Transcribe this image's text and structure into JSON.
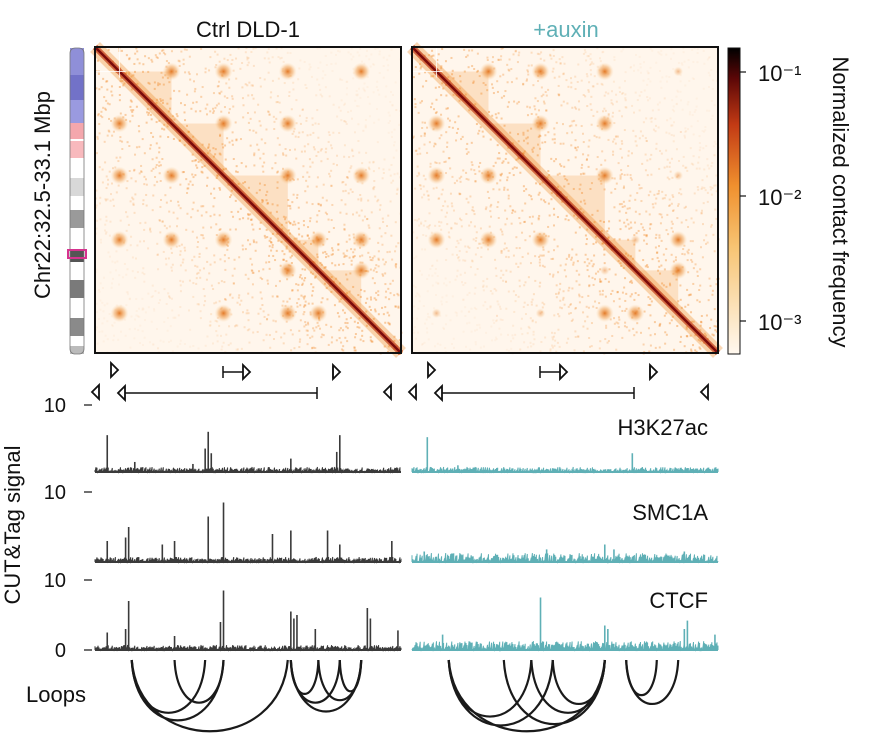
{
  "colors": {
    "ctrl_track": "#3a3a3a",
    "auxin_track": "#5fb0b6",
    "auxin_title": "#5fb0b6",
    "loop": "#1a1a1a",
    "map_low": "#fff6ec",
    "map_mid": "#f29a3c",
    "map_high": "#7a0a0a",
    "map_max": "#000000",
    "ideogram_highlight": "#d6338f"
  },
  "chart_data": {
    "type": "heatmap",
    "panels": [
      {
        "title": "Ctrl DLD-1",
        "track_color_key": "ctrl_track"
      },
      {
        "title": "+auxin",
        "track_color_key": "auxin_track"
      }
    ],
    "ylabel": "Chr22:32.5-33.1 Mbp",
    "colorbar": {
      "label": "Normalized contact frequency",
      "scale": "log",
      "ticks": [
        "10⁻¹",
        "10⁻²",
        "10⁻³"
      ],
      "range": [
        0.0006,
        0.15
      ]
    },
    "tracks_ylabel": "CUT&Tag signal",
    "tracks": [
      {
        "name": "H3K27ac",
        "ymax_label": "10",
        "ymin_label": "",
        "ctrl_peaks": [
          [
            0.04,
            0.55
          ],
          [
            0.13,
            0.15
          ],
          [
            0.32,
            0.12
          ],
          [
            0.36,
            0.35
          ],
          [
            0.37,
            0.6
          ],
          [
            0.38,
            0.28
          ],
          [
            0.64,
            0.2
          ],
          [
            0.79,
            0.3
          ],
          [
            0.8,
            0.55
          ]
        ],
        "auxin_peaks": [
          [
            0.05,
            0.52
          ],
          [
            0.15,
            0.1
          ],
          [
            0.72,
            0.28
          ]
        ]
      },
      {
        "name": "SMC1A",
        "ymax_label": "10",
        "ymin_label": "",
        "ctrl_peaks": [
          [
            0.04,
            0.3
          ],
          [
            0.1,
            0.35
          ],
          [
            0.11,
            0.5
          ],
          [
            0.22,
            0.25
          ],
          [
            0.26,
            0.3
          ],
          [
            0.37,
            0.65
          ],
          [
            0.42,
            0.85
          ],
          [
            0.58,
            0.4
          ],
          [
            0.64,
            0.45
          ],
          [
            0.76,
            0.45
          ],
          [
            0.8,
            0.25
          ],
          [
            0.97,
            0.3
          ]
        ],
        "auxin_peaks": [
          [
            0.04,
            0.15
          ],
          [
            0.44,
            0.18
          ],
          [
            0.63,
            0.25
          ],
          [
            0.66,
            0.18
          ],
          [
            0.89,
            0.15
          ]
        ]
      },
      {
        "name": "CTCF",
        "ymax_label": "10",
        "ymin_label": "0",
        "ctrl_peaks": [
          [
            0.04,
            0.25
          ],
          [
            0.1,
            0.3
          ],
          [
            0.11,
            0.7
          ],
          [
            0.26,
            0.2
          ],
          [
            0.41,
            0.4
          ],
          [
            0.42,
            0.85
          ],
          [
            0.64,
            0.55
          ],
          [
            0.65,
            0.45
          ],
          [
            0.66,
            0.5
          ],
          [
            0.72,
            0.3
          ],
          [
            0.89,
            0.6
          ],
          [
            0.9,
            0.45
          ],
          [
            0.99,
            0.28
          ]
        ],
        "auxin_peaks": [
          [
            0.1,
            0.22
          ],
          [
            0.42,
            0.75
          ],
          [
            0.63,
            0.35
          ],
          [
            0.64,
            0.3
          ],
          [
            0.89,
            0.3
          ],
          [
            0.9,
            0.42
          ],
          [
            0.99,
            0.22
          ]
        ]
      }
    ],
    "loops_label": "Loops",
    "ctrl_loops": [
      [
        0.12,
        0.36
      ],
      [
        0.12,
        0.42
      ],
      [
        0.26,
        0.42
      ],
      [
        0.12,
        0.63
      ],
      [
        0.64,
        0.73
      ],
      [
        0.64,
        0.8
      ],
      [
        0.64,
        0.87
      ],
      [
        0.73,
        0.87
      ],
      [
        0.8,
        0.87
      ]
    ],
    "auxin_loops": [
      [
        0.12,
        0.39
      ],
      [
        0.12,
        0.46
      ],
      [
        0.12,
        0.63
      ],
      [
        0.3,
        0.63
      ],
      [
        0.39,
        0.63
      ],
      [
        0.46,
        0.63
      ],
      [
        0.7,
        0.87
      ],
      [
        0.7,
        0.8
      ]
    ],
    "domain_corners": [
      0.08,
      0.25,
      0.42,
      0.63,
      0.73,
      0.87
    ],
    "map_dots": [
      [
        0.08,
        0.25
      ],
      [
        0.08,
        0.42
      ],
      [
        0.08,
        0.63
      ],
      [
        0.25,
        0.42
      ],
      [
        0.42,
        0.63
      ],
      [
        0.25,
        0.63
      ],
      [
        0.73,
        0.87
      ],
      [
        0.63,
        0.87
      ],
      [
        0.63,
        0.73
      ],
      [
        0.08,
        0.87
      ],
      [
        0.42,
        0.87
      ]
    ]
  }
}
